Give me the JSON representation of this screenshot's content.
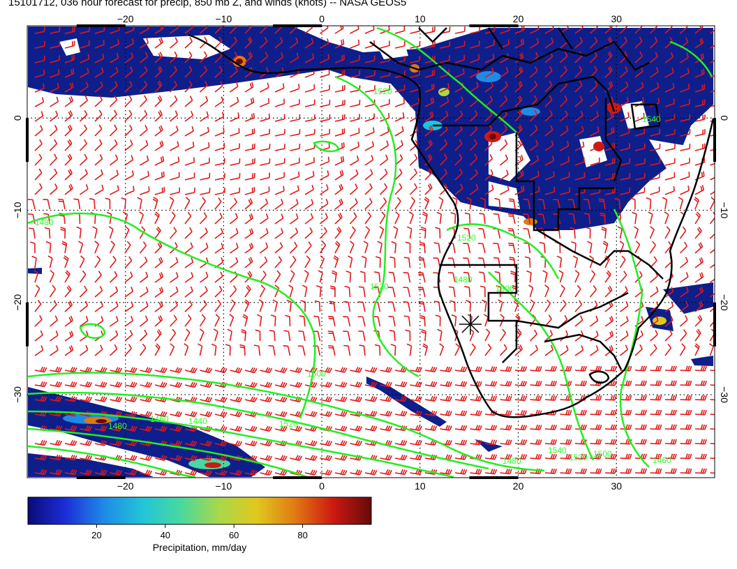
{
  "title": "15101712, 036 hour forecast for precip, 850 mb Z, and winds (knots) -- NASA GEOS5",
  "map": {
    "lon_range": [
      -30,
      40
    ],
    "lat_range": [
      -39,
      10
    ],
    "lon_ticks": [
      -20,
      -10,
      0,
      10,
      20,
      30
    ],
    "lat_ticks": [
      0,
      -10,
      -20,
      -30
    ],
    "lon_tick_labels": [
      "−20",
      "−10",
      "0",
      "10",
      "20",
      "30"
    ],
    "lat_tick_labels_left": [
      "0",
      "−10",
      "−20",
      "−30"
    ],
    "lat_tick_labels_right": [
      "0",
      "−10",
      "−20",
      "−30"
    ],
    "grid": "dotted",
    "wind_barb_color": "#e01818",
    "contour_color": "#22ee22",
    "coastline_color": "#000000",
    "contour_labels": [
      "1520",
      "1520",
      "1500",
      "1480",
      "1520",
      "1500",
      "1480",
      "1460",
      "1440",
      "1520",
      "1520",
      "1540",
      "1500",
      "1480",
      "1540",
      "1480",
      "1460"
    ]
  },
  "colorbar": {
    "label": "Precipitation, mm/day",
    "ticks": [
      20,
      40,
      60,
      80
    ],
    "range": [
      0,
      100
    ],
    "colors": [
      "#0a0a78",
      "#1c2fd8",
      "#1f8be6",
      "#22c4d9",
      "#48d8a0",
      "#a8d84a",
      "#e0c81c",
      "#e07a14",
      "#cc1a10",
      "#640a0a"
    ]
  }
}
